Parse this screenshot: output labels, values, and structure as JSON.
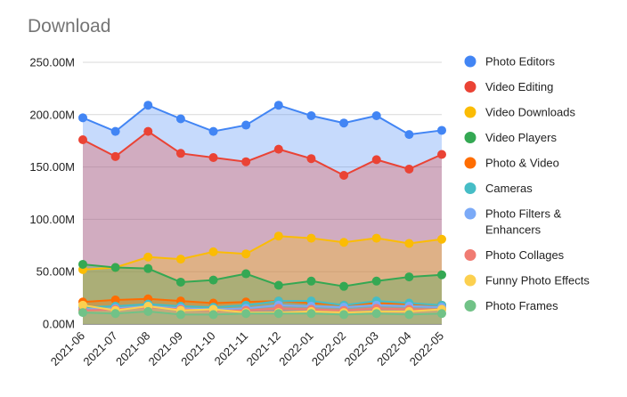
{
  "chart_data": {
    "type": "area",
    "title": "Download",
    "xlabel": "",
    "ylabel": "",
    "ylim": [
      0,
      250000000
    ],
    "y_ticks": [
      {
        "value": 0,
        "label": "0.00M"
      },
      {
        "value": 50000000,
        "label": "50.00M"
      },
      {
        "value": 100000000,
        "label": "100.00M"
      },
      {
        "value": 150000000,
        "label": "150.00M"
      },
      {
        "value": 200000000,
        "label": "200.00M"
      },
      {
        "value": 250000000,
        "label": "250.00M"
      }
    ],
    "grid": true,
    "legend_position": "right",
    "categories": [
      "2021-06",
      "2021-07",
      "2021-08",
      "2021-09",
      "2021-10",
      "2021-11",
      "2021-12",
      "2022-01",
      "2022-02",
      "2022-03",
      "2022-04",
      "2022-05"
    ],
    "series": [
      {
        "name": "Photo Editors",
        "color": "#4285f4",
        "values": [
          197000000,
          184000000,
          209000000,
          196000000,
          184000000,
          190000000,
          209000000,
          199000000,
          192000000,
          199000000,
          181000000,
          185000000
        ]
      },
      {
        "name": "Video Editing",
        "color": "#ea4335",
        "values": [
          176000000,
          160000000,
          184000000,
          163000000,
          159000000,
          155000000,
          167000000,
          158000000,
          142000000,
          157000000,
          148000000,
          162000000
        ]
      },
      {
        "name": "Video Downloads",
        "color": "#fbbc04",
        "values": [
          52000000,
          54000000,
          64000000,
          62000000,
          69000000,
          67000000,
          84000000,
          82000000,
          78000000,
          82000000,
          77000000,
          81000000
        ]
      },
      {
        "name": "Video Players",
        "color": "#34a853",
        "values": [
          57000000,
          54000000,
          53000000,
          40000000,
          42000000,
          48000000,
          37000000,
          41000000,
          36000000,
          41000000,
          45000000,
          47000000
        ]
      },
      {
        "name": "Photo & Video",
        "color": "#ff6d01",
        "values": [
          21000000,
          23000000,
          24000000,
          22000000,
          20000000,
          21000000,
          22000000,
          20000000,
          18000000,
          20000000,
          19000000,
          18000000
        ]
      },
      {
        "name": "Cameras",
        "color": "#46bdc6",
        "values": [
          16000000,
          17000000,
          19000000,
          17000000,
          16000000,
          18000000,
          22000000,
          22000000,
          18000000,
          22000000,
          20000000,
          18000000
        ]
      },
      {
        "name": "Photo Filters & Enhancers",
        "color": "#7baaf7",
        "values": [
          14000000,
          15000000,
          17000000,
          15000000,
          14000000,
          15000000,
          18000000,
          17000000,
          16000000,
          18000000,
          17000000,
          16000000
        ]
      },
      {
        "name": "Photo Collages",
        "color": "#f07b72",
        "values": [
          13000000,
          14000000,
          16000000,
          14000000,
          13000000,
          13000000,
          15000000,
          14000000,
          13000000,
          15000000,
          14000000,
          14000000
        ]
      },
      {
        "name": "Funny Photo Effects",
        "color": "#fcd04f",
        "values": [
          18000000,
          13000000,
          17000000,
          13000000,
          14000000,
          11000000,
          11000000,
          12000000,
          11000000,
          12000000,
          12000000,
          14000000
        ]
      },
      {
        "name": "Photo Frames",
        "color": "#71c287",
        "values": [
          11000000,
          10000000,
          12000000,
          9000000,
          9000000,
          10000000,
          10000000,
          10000000,
          9000000,
          10000000,
          9000000,
          10000000
        ]
      }
    ]
  }
}
